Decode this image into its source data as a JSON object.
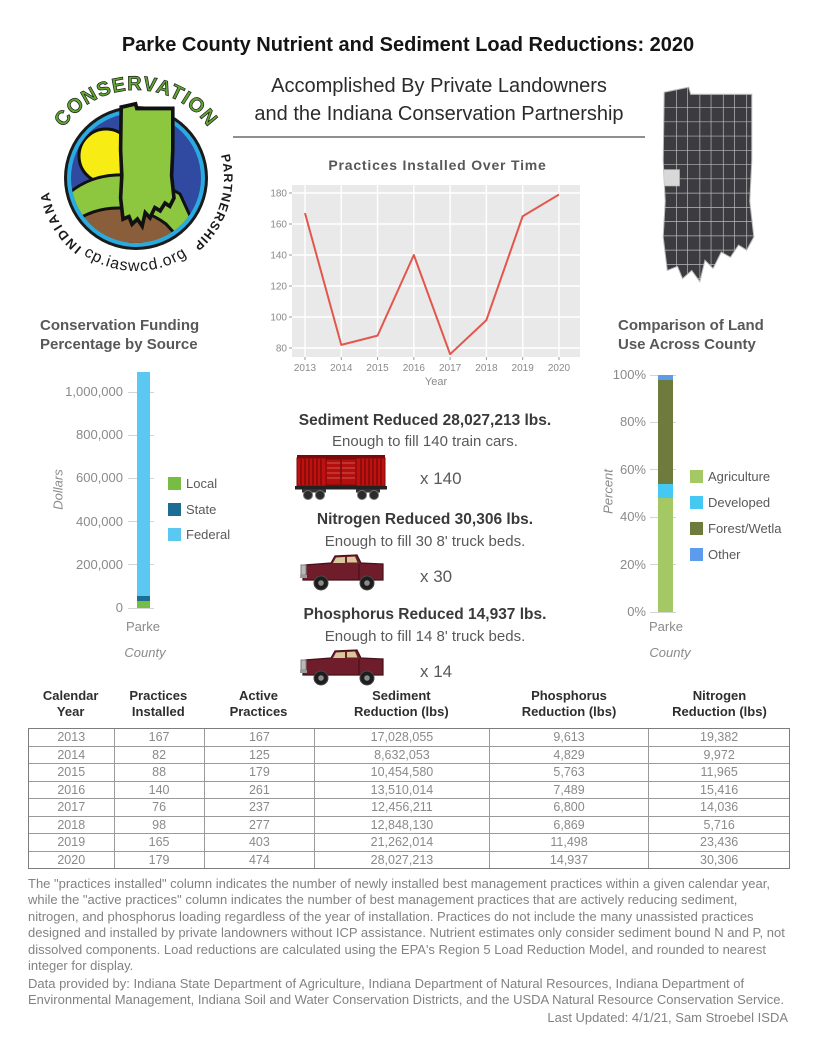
{
  "page": {
    "title": "Parke County Nutrient and Sediment Load Reductions: 2020",
    "subtitle_line1": "Accomplished By Private Landowners",
    "subtitle_line2": "and the Indiana Conservation Partnership"
  },
  "logo": {
    "arc_top": "CONSERVATION",
    "arc_left": "INDIANA",
    "arc_right": "PARTNERSHIP",
    "arc_bottom": "icp.iaswcd.org/"
  },
  "map": {
    "description": "indiana-county-map",
    "highlighted_county": "Parke"
  },
  "chart_data": [
    {
      "type": "line",
      "title": "Practices Installed Over Time",
      "xlabel": "Year",
      "x": [
        2013,
        2014,
        2015,
        2016,
        2017,
        2018,
        2019,
        2020
      ],
      "values": [
        167,
        82,
        88,
        140,
        76,
        98,
        165,
        179
      ],
      "y_ticks": [
        80,
        100,
        120,
        140,
        160,
        180
      ],
      "ylim": [
        72,
        185
      ],
      "line_color": "#e2574c",
      "plot_bg": "#e9e9e9",
      "grid": "white"
    },
    {
      "type": "bar",
      "stacked": true,
      "title_line1": "Conservation Funding",
      "title_line2": "Percentage by Source",
      "ylabel": "Dollars",
      "xlabel": "County",
      "categories": [
        "Parke"
      ],
      "series": [
        {
          "name": "Local",
          "value": 32000,
          "color": "#77bd43"
        },
        {
          "name": "State",
          "value": 23000,
          "color": "#1b6d93"
        },
        {
          "name": "Federal",
          "value": 1038000,
          "color": "#5bc8f2"
        }
      ],
      "y_ticks": [
        {
          "value": 0,
          "label": "0"
        },
        {
          "value": 200000,
          "label": "200,000"
        },
        {
          "value": 400000,
          "label": "400,000"
        },
        {
          "value": 600000,
          "label": "600,000"
        },
        {
          "value": 800000,
          "label": "800,000"
        },
        {
          "value": 1000000,
          "label": "1,000,000"
        }
      ],
      "legend_position": "right"
    },
    {
      "type": "bar",
      "stacked": true,
      "units": "percent",
      "title_line1": "Comparison of Land",
      "title_line2": "Use Across County",
      "ylabel": "Percent",
      "xlabel": "County",
      "categories": [
        "Parke"
      ],
      "series": [
        {
          "name": "Agriculture",
          "value": 48,
          "color": "#a4c964"
        },
        {
          "name": "Developed",
          "value": 6,
          "color": "#45c8f1"
        },
        {
          "name": "Forest/Wetla",
          "value": 44,
          "color": "#6d7c3d"
        },
        {
          "name": "Other",
          "value": 2,
          "color": "#5d9cec"
        }
      ],
      "y_ticks": [
        {
          "value": 0,
          "label": "0%"
        },
        {
          "value": 20,
          "label": "20%"
        },
        {
          "value": 40,
          "label": "40%"
        },
        {
          "value": 60,
          "label": "60%"
        },
        {
          "value": 80,
          "label": "80%"
        },
        {
          "value": 100,
          "label": "100%"
        }
      ],
      "legend_position": "right"
    }
  ],
  "reductions": [
    {
      "heading": "Sediment Reduced 28,027,213 lbs.",
      "sub": "Enough to fill 140 train cars.",
      "multiplier": "x 140",
      "icon": "train-car"
    },
    {
      "heading": "Nitrogen Reduced 30,306  lbs.",
      "sub": "Enough to fill 30 8' truck beds.",
      "multiplier": "x 30",
      "icon": "pickup-truck"
    },
    {
      "heading": "Phosphorus Reduced 14,937  lbs.",
      "sub": "Enough to fill 14  8' truck beds.",
      "multiplier": "x 14",
      "icon": "pickup-truck"
    }
  ],
  "table": {
    "headers": [
      {
        "line1": "Calendar",
        "line2": "Year"
      },
      {
        "line1": "Practices",
        "line2": "Installed"
      },
      {
        "line1": "Active",
        "line2": "Practices"
      },
      {
        "line1": "Sediment",
        "line2": "Reduction (lbs)"
      },
      {
        "line1": "Phosphorus",
        "line2": "Reduction (lbs)"
      },
      {
        "line1": "Nitrogen",
        "line2": "Reduction (lbs)"
      }
    ],
    "rows": [
      [
        "2013",
        "167",
        "167",
        "17,028,055",
        "9,613",
        "19,382"
      ],
      [
        "2014",
        "82",
        "125",
        "8,632,053",
        "4,829",
        "9,972"
      ],
      [
        "2015",
        "88",
        "179",
        "10,454,580",
        "5,763",
        "11,965"
      ],
      [
        "2016",
        "140",
        "261",
        "13,510,014",
        "7,489",
        "15,416"
      ],
      [
        "2017",
        "76",
        "237",
        "12,456,211",
        "6,800",
        "14,036"
      ],
      [
        "2018",
        "98",
        "277",
        "12,848,130",
        "6,869",
        "5,716"
      ],
      [
        "2019",
        "165",
        "403",
        "21,262,014",
        "11,498",
        "23,436"
      ],
      [
        "2020",
        "179",
        "474",
        "28,027,213",
        "14,937",
        "30,306"
      ]
    ]
  },
  "footer": {
    "para1": "The \"practices installed\" column indicates the number of newly installed best management practices within a given calendar year, while the \"active practices\" column indicates the number of best management practices that are actively reducing sediment, nitrogen, and phosphorus loading regardless of the year of installation.  Practices do not include the many unassisted practices designed and installed by private landowners without ICP assistance. Nutrient estimates only consider sediment bound N and P, not dissolved components. Load reductions are calculated using the EPA's Region 5 Load Reduction Model, and rounded to nearest integer for display.",
    "para2": "Data provided by: Indiana State Department of Agriculture, Indiana Department of Natural Resources, Indiana Department of Environmental Management, Indiana Soil and Water Conservation Districts, and the USDA Natural Resource Conservation Service.",
    "last_updated": "Last Updated: 4/1/21, Sam Stroebel ISDA"
  }
}
